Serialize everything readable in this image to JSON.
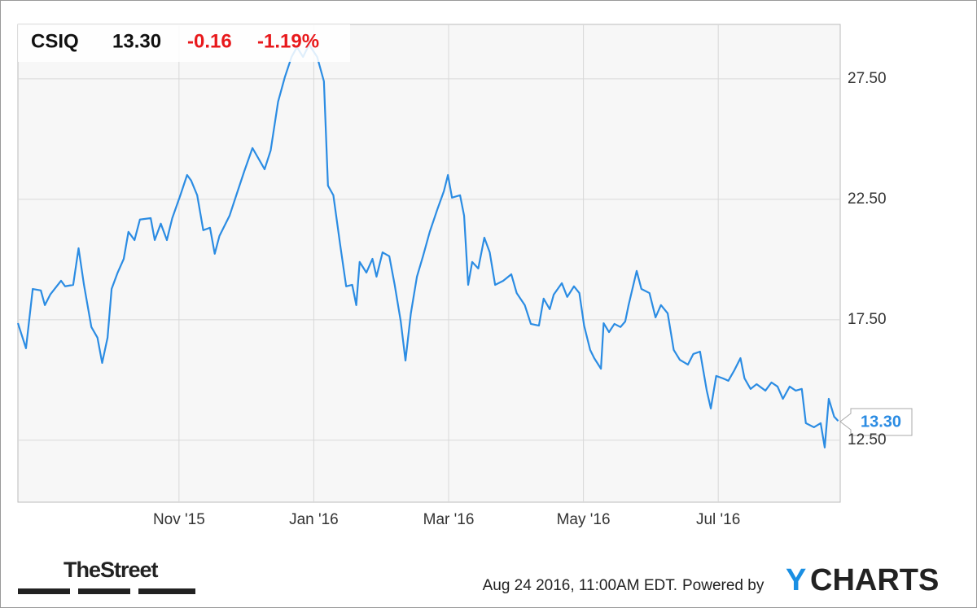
{
  "header": {
    "ticker": "CSIQ",
    "price": "13.30",
    "change": "-0.16",
    "change_pct": "-1.19%"
  },
  "chart_data": {
    "type": "line",
    "x": [
      8.61,
      8.73,
      8.83,
      8.95,
      9.01,
      9.09,
      9.25,
      9.31,
      9.43,
      9.51,
      9.59,
      9.7,
      9.79,
      9.86,
      9.94,
      10.0,
      10.09,
      10.18,
      10.25,
      10.34,
      10.42,
      10.58,
      10.64,
      10.73,
      10.82,
      10.9,
      11.02,
      11.12,
      11.18,
      11.27,
      11.36,
      11.46,
      11.53,
      11.6,
      11.75,
      11.85,
      11.97,
      12.09,
      12.18,
      12.27,
      12.36,
      12.47,
      12.57,
      12.67,
      12.75,
      12.84,
      12.93,
      13.05,
      13.15,
      13.21,
      13.29,
      13.39,
      13.48,
      13.57,
      13.63,
      13.68,
      13.78,
      13.87,
      13.93,
      14.02,
      14.12,
      14.2,
      14.29,
      14.36,
      14.44,
      14.53,
      14.62,
      14.72,
      14.83,
      14.93,
      14.99,
      15.05,
      15.17,
      15.23,
      15.29,
      15.35,
      15.44,
      15.53,
      15.61,
      15.69,
      15.81,
      15.93,
      16.01,
      16.13,
      16.22,
      16.34,
      16.41,
      16.5,
      16.56,
      16.68,
      16.76,
      16.86,
      16.94,
      17.01,
      17.1,
      17.16,
      17.26,
      17.3,
      17.38,
      17.46,
      17.55,
      17.62,
      17.67,
      17.79,
      17.86,
      17.98,
      18.07,
      18.15,
      18.25,
      18.34,
      18.43,
      18.55,
      18.63,
      18.73,
      18.83,
      18.89,
      18.97,
      19.07,
      19.15,
      19.24,
      19.33,
      19.39,
      19.48,
      19.57,
      19.7,
      19.79,
      19.88,
      19.96,
      20.06,
      20.15,
      20.24,
      20.3,
      20.42,
      20.52,
      20.58,
      20.64,
      20.72,
      20.78
    ],
    "series": [
      {
        "color": "#2b8ce3",
        "values": [
          17.36,
          16.32,
          18.78,
          18.72,
          18.11,
          18.55,
          19.12,
          18.89,
          18.95,
          20.47,
          18.95,
          17.2,
          16.76,
          15.71,
          16.76,
          18.78,
          19.46,
          20.03,
          21.15,
          20.81,
          21.66,
          21.72,
          20.81,
          21.49,
          20.81,
          21.72,
          22.67,
          23.51,
          23.28,
          22.67,
          21.22,
          21.32,
          20.24,
          20.98,
          21.82,
          22.67,
          23.68,
          24.63,
          24.19,
          23.75,
          24.53,
          26.55,
          27.57,
          28.41,
          28.82,
          28.41,
          28.92,
          28.41,
          27.4,
          23.07,
          22.67,
          20.64,
          18.89,
          18.95,
          18.11,
          19.9,
          19.46,
          20.03,
          19.29,
          20.3,
          20.14,
          18.95,
          17.43,
          15.81,
          17.77,
          19.29,
          20.14,
          21.15,
          22.06,
          22.84,
          23.51,
          22.57,
          22.67,
          21.82,
          18.95,
          19.9,
          19.63,
          20.91,
          20.3,
          18.95,
          19.12,
          19.39,
          18.61,
          18.11,
          17.33,
          17.26,
          18.38,
          17.94,
          18.55,
          19.02,
          18.45,
          18.89,
          18.61,
          17.26,
          16.25,
          15.91,
          15.47,
          17.36,
          16.99,
          17.33,
          17.2,
          17.43,
          18.11,
          19.53,
          18.78,
          18.61,
          17.6,
          18.11,
          17.77,
          16.25,
          15.84,
          15.64,
          16.08,
          16.18,
          14.56,
          13.82,
          15.17,
          15.07,
          14.97,
          15.41,
          15.91,
          15.07,
          14.63,
          14.83,
          14.56,
          14.9,
          14.73,
          14.22,
          14.73,
          14.56,
          14.63,
          13.21,
          13.04,
          13.21,
          12.2,
          14.22,
          13.48,
          13.3
        ]
      }
    ],
    "xlim": [
      8.61,
      20.81
    ],
    "xticks": [
      {
        "value": 11,
        "label": "Nov '15"
      },
      {
        "value": 13,
        "label": "Jan '16"
      },
      {
        "value": 15,
        "label": "Mar '16"
      },
      {
        "value": 17,
        "label": "May '16"
      },
      {
        "value": 19,
        "label": "Jul '16"
      }
    ],
    "ylim": [
      9.93,
      29.76
    ],
    "yticks": [
      {
        "value": 12.5,
        "label": "12.50"
      },
      {
        "value": 17.5,
        "label": "17.50"
      },
      {
        "value": 22.5,
        "label": "22.50"
      },
      {
        "value": 27.5,
        "label": "27.50"
      }
    ],
    "grid": true
  },
  "footer": {
    "brand": "TheStreet",
    "timestamp": "Aug 24 2016, 11:00AM EDT.",
    "powered_by": "Powered by",
    "logo_y": "Y",
    "logo_rest": "CHARTS"
  }
}
